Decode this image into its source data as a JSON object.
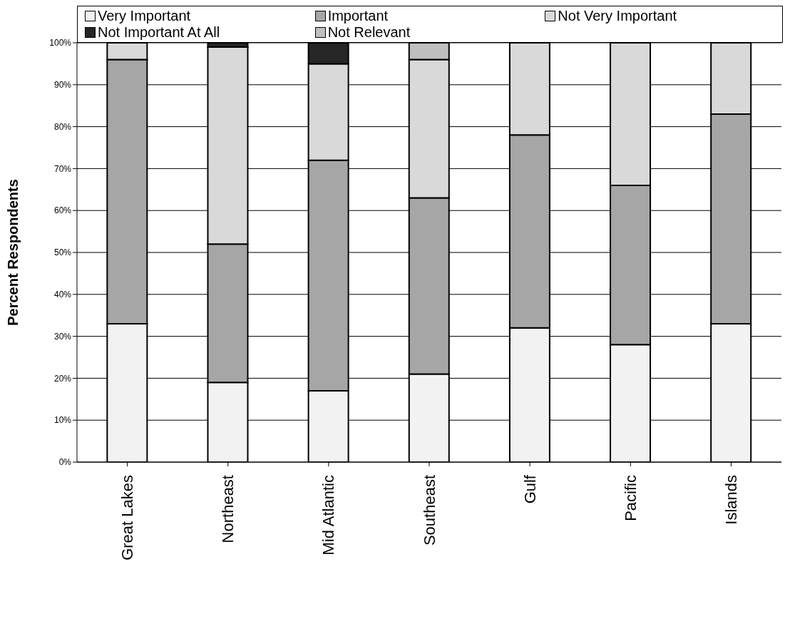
{
  "chart_data": {
    "type": "bar",
    "stacked": true,
    "ylabel": "Percent Respondents",
    "categories": [
      "Great Lakes",
      "Northeast",
      "Mid Atlantic",
      "Southeast",
      "Gulf",
      "Pacific",
      "Islands"
    ],
    "series": [
      {
        "name": "Very Important",
        "color": "#f2f2f2",
        "values": [
          33,
          19,
          17,
          21,
          32,
          28,
          33
        ]
      },
      {
        "name": "Important",
        "color": "#a6a6a6",
        "values": [
          63,
          33,
          55,
          42,
          46,
          38,
          50
        ]
      },
      {
        "name": "Not Very Important",
        "color": "#d9d9d9",
        "values": [
          4,
          47,
          23,
          33,
          22,
          34,
          17
        ]
      },
      {
        "name": "Not Important At All",
        "color": "#262626",
        "values": [
          0,
          1,
          5,
          0,
          0,
          0,
          0
        ]
      },
      {
        "name": "Not Relevant",
        "color": "#bfbfbf",
        "values": [
          0,
          0,
          0,
          4,
          0,
          0,
          0
        ]
      }
    ],
    "ylim": [
      0,
      100
    ],
    "yticks": [
      {
        "value": 0,
        "label": "0%"
      },
      {
        "value": 10,
        "label": "10%"
      },
      {
        "value": 20,
        "label": "20%"
      },
      {
        "value": 30,
        "label": "30%"
      },
      {
        "value": 40,
        "label": "40%"
      },
      {
        "value": 50,
        "label": "50%"
      },
      {
        "value": 60,
        "label": "60%"
      },
      {
        "value": 70,
        "label": "70%"
      },
      {
        "value": 80,
        "label": "80%"
      },
      {
        "value": 90,
        "label": "90%"
      },
      {
        "value": 100,
        "label": "100%"
      }
    ],
    "grid": "y",
    "legend": "top"
  }
}
